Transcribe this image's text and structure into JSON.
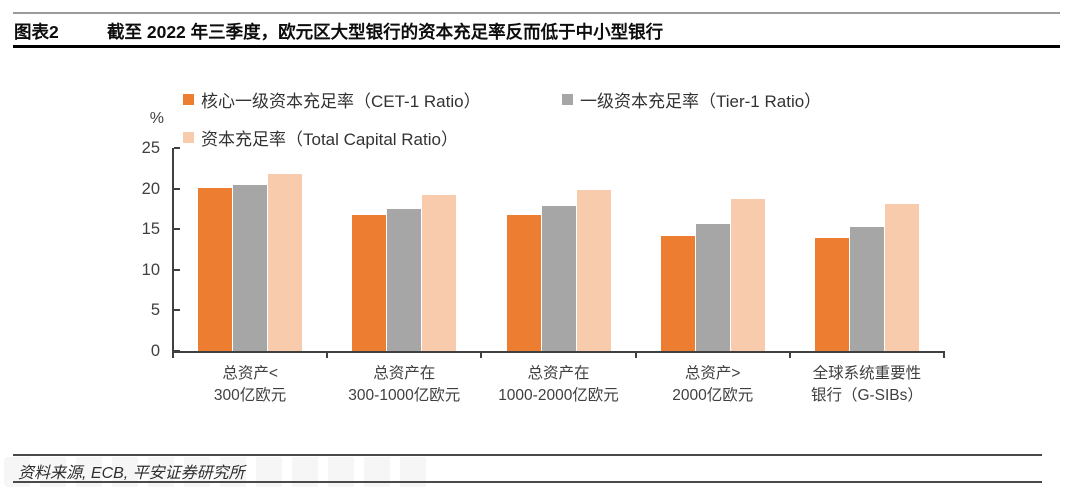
{
  "header": {
    "figure_label": "图表2",
    "title": "截至 2022 年三季度，欧元区大型银行的资本充足率反而低于中小型银行"
  },
  "chart_data": {
    "type": "bar",
    "unit_label": "%",
    "ylim": [
      0,
      25
    ],
    "yticks": [
      0,
      5,
      10,
      15,
      20,
      25
    ],
    "grid": false,
    "legend_position": "top-left, two rows",
    "categories": [
      [
        "总资产<",
        "300亿欧元"
      ],
      [
        "总资产在",
        "300-1000亿欧元"
      ],
      [
        "总资产在",
        "1000-2000亿欧元"
      ],
      [
        "总资产>",
        "2000亿欧元"
      ],
      [
        "全球系统重要性",
        "银行（G-SIBs）"
      ]
    ],
    "series": [
      {
        "name": "核心一级资本充足率（CET-1 Ratio）",
        "color": "#ED7D31",
        "values": [
          20.1,
          16.7,
          16.8,
          14.2,
          13.9
        ]
      },
      {
        "name": "一级资本充足率（Tier-1 Ratio）",
        "color": "#A6A6A6",
        "values": [
          20.4,
          17.5,
          17.8,
          15.7,
          15.3
        ]
      },
      {
        "name": "资本充足率（Total Capital Ratio）",
        "color": "#F8CBAD",
        "values": [
          21.8,
          19.2,
          19.8,
          18.7,
          18.1
        ]
      }
    ]
  },
  "footer": {
    "source": "资料来源, ECB, 平安证券研究所"
  },
  "colors": {
    "accent_orange": "#ED7D31",
    "accent_gray": "#A6A6A6",
    "accent_peach": "#F8CBAD",
    "axis": "#404040",
    "title_rule": "#000000",
    "top_rule": "#9B9B9B"
  }
}
